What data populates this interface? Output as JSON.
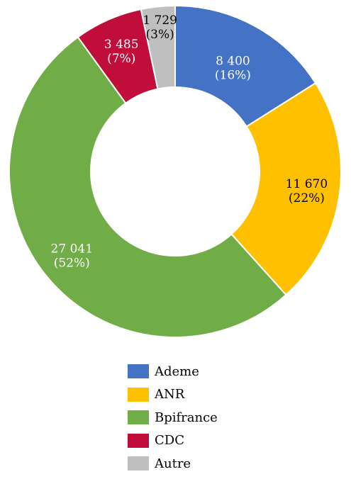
{
  "chart_data": {
    "type": "pie",
    "donut": true,
    "title": "",
    "legend_position": "bottom",
    "categories": [
      "Ademe",
      "ANR",
      "Bpifrance",
      "CDC",
      "Autre"
    ],
    "values": [
      8400,
      11670,
      27041,
      3485,
      1729
    ],
    "value_labels": [
      "8 400",
      "11 670",
      "27 041",
      "3 485",
      "1 729"
    ],
    "percent_labels": [
      "(16%)",
      "(22%)",
      "(52%)",
      "(7%)",
      "(3%)"
    ],
    "colors": [
      "#4472C4",
      "#FFC000",
      "#70AD47",
      "#C00D3A",
      "#BFBFBF"
    ],
    "label_colors": [
      "#ffffff",
      "#000000",
      "#ffffff",
      "#ffffff",
      "#000000"
    ]
  }
}
